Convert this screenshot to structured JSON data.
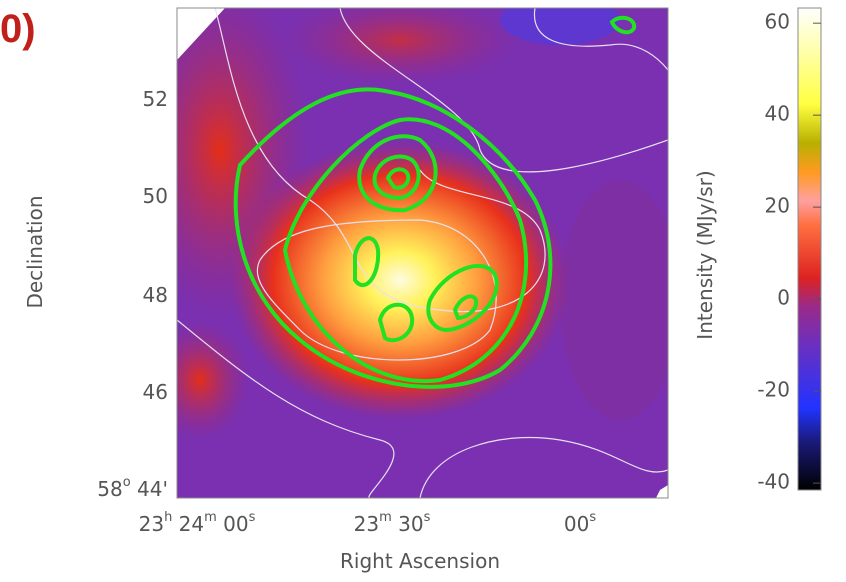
{
  "panel_label": "0)",
  "image": {
    "x_axis": {
      "label": "Right Ascension",
      "ticks": [
        [
          "23",
          "h",
          " 24",
          "m",
          " 00",
          "s"
        ],
        [
          "23",
          "m",
          " 30",
          "s"
        ],
        [
          "00",
          "s"
        ]
      ]
    },
    "y_axis": {
      "label": "Declination",
      "ticks": [
        [
          "52"
        ],
        [
          "50"
        ],
        [
          "48"
        ],
        [
          "46"
        ],
        [
          "58",
          "o",
          " 44'"
        ]
      ]
    }
  },
  "colorbar": {
    "label": "Intensity (MJy/sr)",
    "lim": [
      -41.5,
      63.3
    ],
    "ticks": [
      60,
      40,
      20,
      0,
      -20,
      -40
    ]
  }
}
